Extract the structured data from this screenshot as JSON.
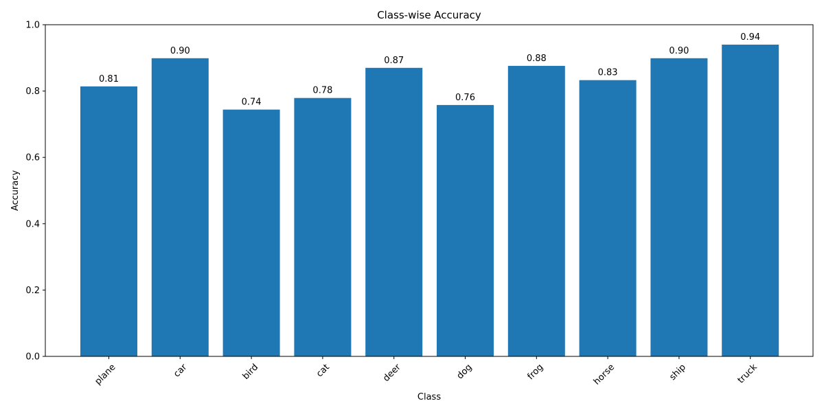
{
  "chart_data": {
    "type": "bar",
    "title": "Class-wise Accuracy",
    "xlabel": "Class",
    "ylabel": "Accuracy",
    "categories": [
      "plane",
      "car",
      "bird",
      "cat",
      "deer",
      "dog",
      "frog",
      "horse",
      "ship",
      "truck"
    ],
    "values": [
      0.814,
      0.899,
      0.744,
      0.779,
      0.87,
      0.758,
      0.876,
      0.833,
      0.899,
      0.94
    ],
    "data_labels": [
      "0.81",
      "0.90",
      "0.74",
      "0.78",
      "0.87",
      "0.76",
      "0.88",
      "0.83",
      "0.90",
      "0.94"
    ],
    "ylim": [
      0,
      1.0
    ],
    "yticks": [
      "0.0",
      "0.2",
      "0.4",
      "0.6",
      "0.8",
      "1.0"
    ],
    "xtick_rotation": 45,
    "grid": false,
    "legend": "none",
    "bar_color": "#1f77b4"
  }
}
